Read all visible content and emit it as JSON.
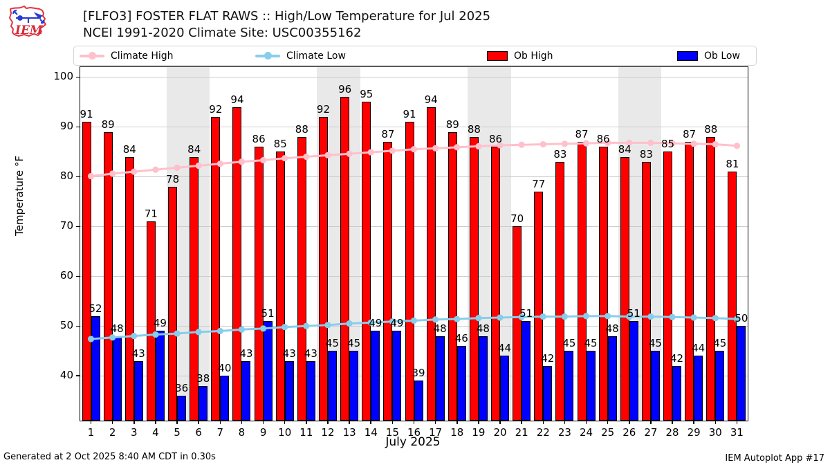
{
  "header": {
    "title": "[FLFO3] FOSTER FLAT RAWS :: High/Low Temperature for Jul 2025",
    "subtitle": "NCEI 1991-2020 Climate Site: USC00355162",
    "logo_text": "IEM"
  },
  "legend": {
    "items": [
      {
        "label": "Climate High",
        "type": "line",
        "color": "#ffc0cb"
      },
      {
        "label": "Climate Low",
        "type": "line",
        "color": "#87ceeb"
      },
      {
        "label": "Ob High",
        "type": "patch",
        "color": "#ff0000"
      },
      {
        "label": "Ob Low",
        "type": "patch",
        "color": "#0000ff"
      }
    ]
  },
  "chart_data": {
    "type": "bar",
    "title": "[FLFO3] FOSTER FLAT RAWS :: High/Low Temperature for Jul 2025",
    "subtitle": "NCEI 1991-2020 Climate Site: USC00355162",
    "xlabel": "July 2025",
    "ylabel": "Temperature °F",
    "ylim": [
      31,
      102
    ],
    "yticks": [
      40,
      50,
      60,
      70,
      80,
      90,
      100
    ],
    "grid": true,
    "legend_position": "top",
    "weekend_bands": [
      [
        5,
        6
      ],
      [
        12,
        13
      ],
      [
        19,
        20
      ],
      [
        26,
        27
      ]
    ],
    "categories": [
      1,
      2,
      3,
      4,
      5,
      6,
      7,
      8,
      9,
      10,
      11,
      12,
      13,
      14,
      15,
      16,
      17,
      18,
      19,
      20,
      21,
      22,
      23,
      24,
      25,
      26,
      27,
      28,
      29,
      30,
      31
    ],
    "series": [
      {
        "name": "Ob High",
        "type": "bar",
        "color": "#ff0000",
        "values": [
          91,
          89,
          84,
          71,
          78,
          84,
          92,
          94,
          86,
          85,
          88,
          92,
          96,
          95,
          87,
          91,
          94,
          89,
          88,
          86,
          70,
          77,
          83,
          87,
          86,
          84,
          83,
          85,
          87,
          88,
          81
        ]
      },
      {
        "name": "Ob Low",
        "type": "bar",
        "color": "#0000ff",
        "values": [
          52,
          48,
          43,
          49,
          36,
          38,
          40,
          43,
          51,
          43,
          43,
          45,
          45,
          49,
          49,
          39,
          48,
          46,
          48,
          44,
          51,
          42,
          45,
          45,
          48,
          51,
          45,
          42,
          44,
          45,
          50
        ]
      },
      {
        "name": "Climate High",
        "type": "line",
        "color": "#ffc0cb",
        "values": [
          80.1,
          80.6,
          81.0,
          81.4,
          81.8,
          82.2,
          82.6,
          83.0,
          83.3,
          83.7,
          84.0,
          84.3,
          84.6,
          84.9,
          85.2,
          85.5,
          85.7,
          85.9,
          86.1,
          86.3,
          86.4,
          86.5,
          86.6,
          86.7,
          86.8,
          86.8,
          86.8,
          86.7,
          86.6,
          86.5,
          86.2
        ]
      },
      {
        "name": "Climate Low",
        "type": "line",
        "color": "#87ceeb",
        "values": [
          47.4,
          47.7,
          48.0,
          48.3,
          48.5,
          48.8,
          49.0,
          49.3,
          49.5,
          49.8,
          50.0,
          50.2,
          50.5,
          50.7,
          50.9,
          51.1,
          51.3,
          51.4,
          51.6,
          51.7,
          51.8,
          51.9,
          51.9,
          52.0,
          52.0,
          51.9,
          51.9,
          51.8,
          51.7,
          51.6,
          51.4
        ]
      }
    ]
  },
  "footer": {
    "left": "Generated at 2 Oct 2025 8:40 AM CDT in 0.30s",
    "right": "IEM Autoplot App #17"
  }
}
